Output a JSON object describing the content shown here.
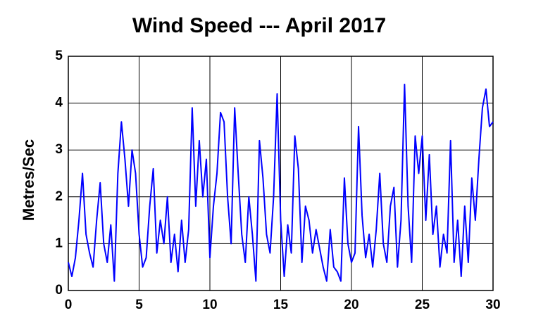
{
  "chart_data": {
    "type": "line",
    "title": "Wind Speed --- April 2017",
    "y_label": "Metres/Sec",
    "x": [
      0,
      0.25,
      0.5,
      0.75,
      1,
      1.25,
      1.5,
      1.75,
      2,
      2.25,
      2.5,
      2.75,
      3,
      3.25,
      3.5,
      3.75,
      4,
      4.25,
      4.5,
      4.75,
      5,
      5.25,
      5.5,
      5.75,
      6,
      6.25,
      6.5,
      6.75,
      7,
      7.25,
      7.5,
      7.75,
      8,
      8.25,
      8.5,
      8.75,
      9,
      9.25,
      9.5,
      9.75,
      10,
      10.25,
      10.5,
      10.75,
      11,
      11.25,
      11.5,
      11.75,
      12,
      12.25,
      12.5,
      12.75,
      13,
      13.25,
      13.5,
      13.75,
      14,
      14.25,
      14.5,
      14.75,
      15,
      15.25,
      15.5,
      15.75,
      16,
      16.25,
      16.5,
      16.75,
      17,
      17.25,
      17.5,
      17.75,
      18,
      18.25,
      18.5,
      18.75,
      19,
      19.25,
      19.5,
      19.75,
      20,
      20.25,
      20.5,
      20.75,
      21,
      21.25,
      21.5,
      21.75,
      22,
      22.25,
      22.5,
      22.75,
      23,
      23.25,
      23.5,
      23.75,
      24,
      24.25,
      24.5,
      24.75,
      25,
      25.25,
      25.5,
      25.75,
      26,
      26.25,
      26.5,
      26.75,
      27,
      27.25,
      27.5,
      27.75,
      28,
      28.25,
      28.5,
      28.75,
      29,
      29.25,
      29.5,
      29.75,
      30
    ],
    "series": [
      {
        "name": "Wind Speed",
        "color": "#0000ff",
        "values": [
          0.6,
          0.3,
          0.7,
          1.5,
          2.5,
          1.2,
          0.8,
          0.5,
          1.5,
          2.3,
          1.0,
          0.6,
          1.4,
          0.2,
          2.5,
          3.6,
          2.8,
          1.8,
          3.0,
          2.5,
          1.2,
          0.5,
          0.7,
          1.8,
          2.6,
          0.8,
          1.5,
          1.0,
          2.0,
          0.6,
          1.2,
          0.4,
          1.5,
          0.6,
          1.3,
          3.9,
          1.8,
          3.2,
          2.0,
          2.8,
          0.7,
          1.8,
          2.5,
          3.8,
          3.6,
          2.0,
          1.0,
          3.9,
          2.5,
          1.2,
          0.6,
          2.0,
          1.2,
          0.2,
          3.2,
          2.4,
          1.2,
          0.8,
          2.0,
          4.2,
          1.5,
          0.3,
          1.4,
          0.8,
          3.3,
          2.6,
          0.6,
          1.8,
          1.5,
          0.8,
          1.3,
          0.9,
          0.5,
          0.2,
          1.3,
          0.5,
          0.4,
          0.2,
          2.4,
          1.0,
          0.6,
          0.8,
          3.5,
          1.6,
          0.7,
          1.2,
          0.5,
          1.3,
          2.5,
          1.0,
          0.6,
          1.8,
          2.2,
          0.5,
          1.5,
          4.4,
          1.8,
          0.6,
          3.3,
          2.5,
          3.3,
          1.5,
          2.9,
          1.2,
          1.8,
          0.5,
          1.2,
          0.8,
          3.2,
          0.6,
          1.5,
          0.3,
          1.8,
          0.6,
          2.4,
          1.5,
          2.8,
          3.9,
          4.3,
          3.5,
          3.6
        ]
      }
    ],
    "xlim": [
      0,
      30
    ],
    "ylim": [
      0,
      5
    ],
    "xticks": [
      0,
      5,
      10,
      15,
      20,
      25,
      30
    ],
    "yticks": [
      0,
      1,
      2,
      3,
      4,
      5
    ],
    "grid": true
  }
}
